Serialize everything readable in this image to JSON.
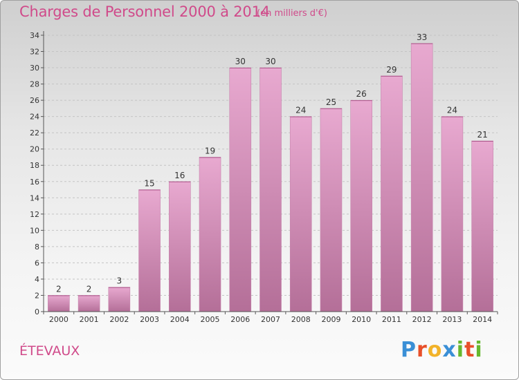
{
  "header": {
    "title": "Charges de Personnel 2000 à 2014",
    "subtitle": "(en milliers d'€)"
  },
  "footer": {
    "commune": "ÉTEVAUX",
    "logo": {
      "letters": [
        "P",
        "r",
        "o",
        "x",
        "i",
        "t",
        "i"
      ],
      "colors": [
        "#3a8fd6",
        "#e8502a",
        "#f2b32a",
        "#3a8fd6",
        "#66b82e",
        "#e8502a",
        "#66b82e"
      ]
    }
  },
  "colors": {
    "bar_top": "#e8a9d0",
    "bar_bottom": "#b46f98",
    "text": "#d04a8a"
  },
  "chart_data": {
    "type": "bar",
    "title": "Charges de Personnel 2000 à 2014",
    "subtitle": "(en milliers d'€)",
    "categories": [
      "2000",
      "2001",
      "2002",
      "2003",
      "2004",
      "2005",
      "2006",
      "2007",
      "2008",
      "2009",
      "2010",
      "2011",
      "2012",
      "2013",
      "2014"
    ],
    "values": [
      2,
      2,
      3,
      15,
      16,
      19,
      30,
      30,
      24,
      25,
      26,
      29,
      33,
      24,
      21
    ],
    "ylim": [
      0,
      34
    ],
    "yticks": [
      0,
      2,
      4,
      6,
      8,
      10,
      12,
      14,
      16,
      18,
      20,
      22,
      24,
      26,
      28,
      30,
      32,
      34
    ],
    "grid": true,
    "data_labels": true
  }
}
